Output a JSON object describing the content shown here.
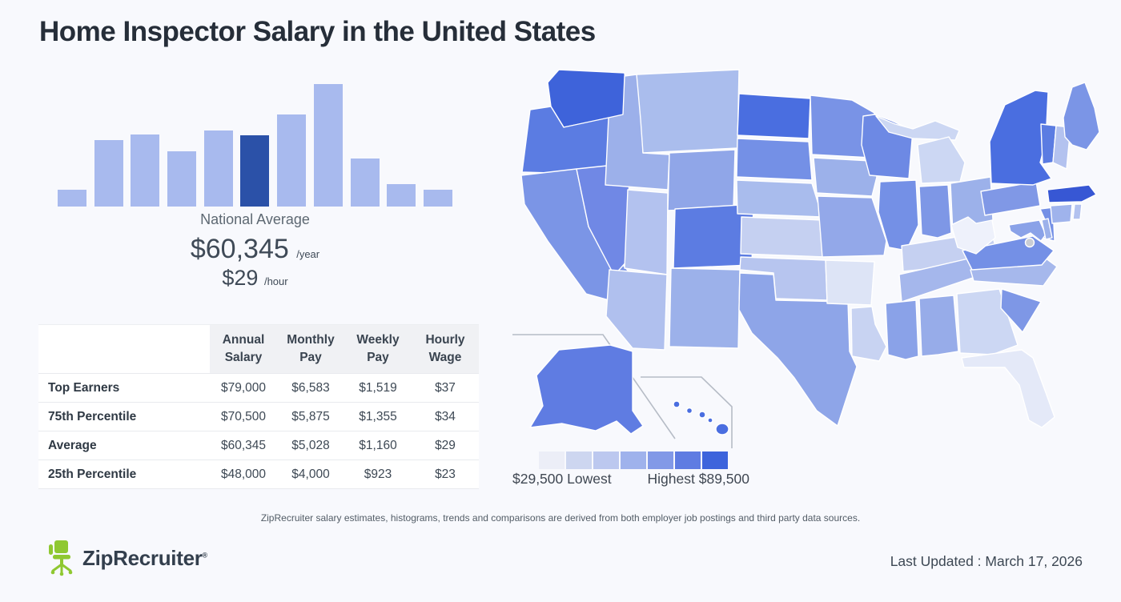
{
  "page": {
    "title": "Home Inspector Salary in the United States",
    "background": "#f8f9fd"
  },
  "national_average": {
    "label": "National Average",
    "annual": "$60,345",
    "annual_unit": "/year",
    "hourly": "$29",
    "hourly_unit": "/hour"
  },
  "map": {
    "legend_colors": [
      "#eceef7",
      "#cdd6f0",
      "#bcc8ef",
      "#9fb2ec",
      "#8299e7",
      "#5f7ce2",
      "#3d64dc"
    ],
    "lowest_label": "$29,500 Lowest",
    "highest_label": "Highest $89,500"
  },
  "footer": {
    "disclaimer": "ZipRecruiter salary estimates, histograms, trends and comparisons are derived from both employer job postings and third party data sources.",
    "logo_text": "ZipRecruiter",
    "logo_reg": "®",
    "logo_green": "#8fc831",
    "last_updated": "Last Updated : March 17, 2026"
  },
  "chart_data": [
    {
      "type": "bar",
      "title": "Home Inspector salary distribution histogram",
      "values": [
        14,
        54,
        59,
        45,
        62,
        58,
        75,
        100,
        39,
        18,
        14
      ],
      "unit": "relative height percent of tallest bin",
      "highlight_index": 5,
      "highlight_label": "National Average",
      "colors": {
        "bar": "#a8baee",
        "highlight": "#2b51a8"
      }
    },
    {
      "type": "table",
      "title": "Home Inspector pay percentiles",
      "columns": [
        "",
        "Annual Salary",
        "Monthly Pay",
        "Weekly Pay",
        "Hourly Wage"
      ],
      "rows": [
        [
          "Top Earners",
          "$79,000",
          "$6,583",
          "$1,519",
          "$37"
        ],
        [
          "75th Percentile",
          "$70,500",
          "$5,875",
          "$1,355",
          "$34"
        ],
        [
          "Average",
          "$60,345",
          "$5,028",
          "$1,160",
          "$29"
        ],
        [
          "25th Percentile",
          "$48,000",
          "$4,000",
          "$923",
          "$23"
        ]
      ]
    },
    {
      "type": "heatmap",
      "title": "Home Inspector salary by state (choropleth, darker = higher pay)",
      "min_salary": 29500,
      "max_salary": 89500,
      "legend_min_label": "$29,500 Lowest",
      "legend_max_label": "Highest $89,500",
      "dc_color": "#c9cdd4",
      "state_colors": {
        "WA": "#3e63da",
        "OR": "#5b7ce2",
        "CA": "#7b95e6",
        "NV": "#7088e5",
        "ID": "#9cb0ea",
        "MT": "#aabded",
        "WY": "#90a6e8",
        "UT": "#b3c2ef",
        "CO": "#5c7ce2",
        "AZ": "#b0c0ee",
        "NM": "#9cb1ea",
        "ND": "#4a6ee0",
        "SD": "#7490e6",
        "NE": "#a9bced",
        "KS": "#c5d0f1",
        "OK": "#b7c5ef",
        "TX": "#8ea5e8",
        "MN": "#7993e6",
        "IA": "#9cb1ea",
        "MO": "#93a8e9",
        "AR": "#dde4f6",
        "LA": "#c8d3f2",
        "WI": "#6d89e4",
        "IL": "#7490e6",
        "MI": "#ccd7f3",
        "IN": "#7e97e6",
        "OH": "#9cb1ea",
        "KY": "#c5d0f1",
        "TN": "#a5b7ec",
        "MS": "#8aa2e8",
        "AL": "#97ace9",
        "GA": "#ccd7f3",
        "FL": "#e4e9f8",
        "SC": "#7e97e6",
        "NC": "#a6b8ec",
        "VA": "#7490e6",
        "WV": "#eef1fb",
        "PA": "#8098e6",
        "NY": "#4a6ee0",
        "NJ": "#7490e6",
        "MD": "#8aa2e8",
        "DE": "#9cb1ea",
        "VT": "#5b7ce2",
        "NH": "#b3c2ef",
        "MA": "#3757d4",
        "CT": "#9fb3ec",
        "RI": "#b3c2ef",
        "ME": "#7b95e6",
        "AK": "#5f7ce2",
        "HI": "#4a6ee0"
      }
    }
  ]
}
